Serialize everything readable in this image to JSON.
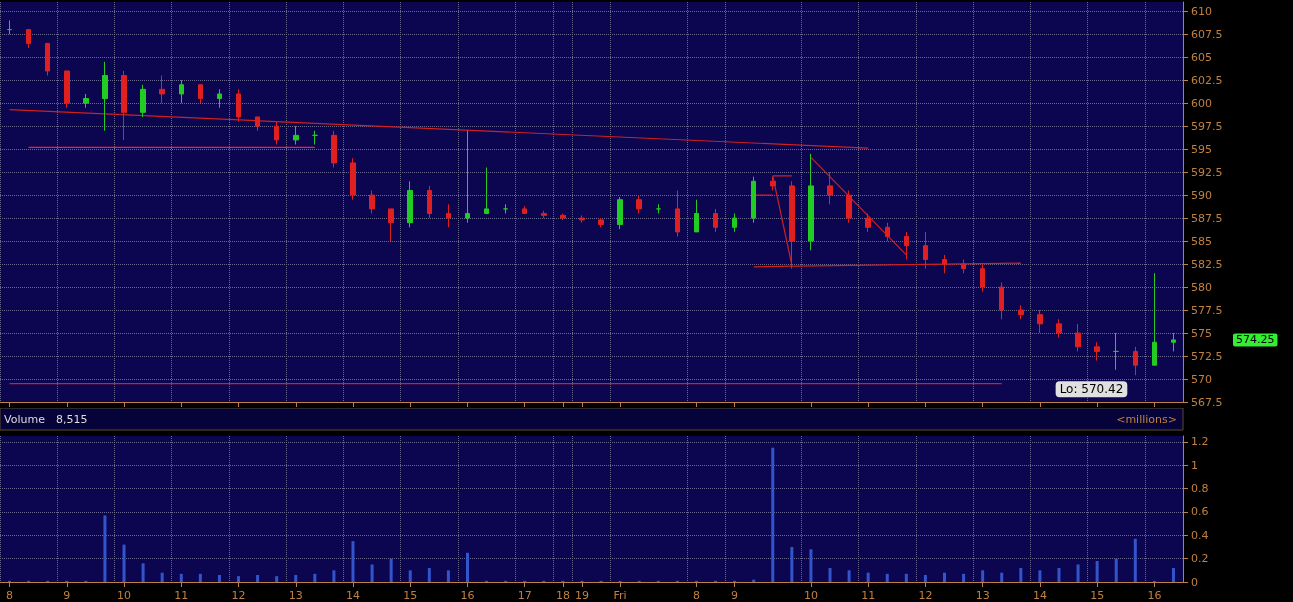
{
  "chart_data": [
    {
      "type": "candlestick",
      "categories": [
        null,
        null,
        null,
        null,
        null,
        null,
        null,
        null,
        null,
        null,
        null,
        null,
        null,
        null,
        null,
        null,
        null,
        null,
        null,
        null,
        null,
        null,
        null,
        null,
        null,
        null,
        null,
        null,
        null,
        null,
        null,
        null,
        null,
        null,
        null,
        null,
        null,
        null,
        null,
        null,
        null,
        null,
        null,
        null,
        null,
        null,
        null,
        null,
        null,
        null,
        null,
        null,
        null,
        null,
        null,
        null,
        null,
        null,
        null,
        null,
        null,
        null
      ],
      "ohlc": [
        [
          608,
          609,
          607.5,
          608
        ],
        [
          608,
          608,
          606,
          606.5
        ],
        [
          606.5,
          606.5,
          603,
          603.5
        ],
        [
          603.5,
          603.5,
          599.5,
          600
        ],
        [
          600,
          601,
          599.5,
          600.5
        ],
        [
          600.5,
          604.5,
          597,
          603
        ],
        [
          603,
          603.5,
          596,
          599
        ],
        [
          599,
          602,
          598.5,
          601.5
        ],
        [
          601.5,
          603,
          600,
          601
        ],
        [
          601,
          602.5,
          600,
          602
        ],
        [
          602,
          602,
          600,
          600.5
        ],
        [
          600.5,
          601.5,
          599.5,
          601
        ],
        [
          601,
          601.5,
          598,
          598.5
        ],
        [
          598.5,
          598.5,
          597,
          597.5
        ],
        [
          597.5,
          598,
          595.5,
          596
        ],
        [
          596,
          597.5,
          595.5,
          596.5
        ],
        [
          596.5,
          597,
          595.5,
          596.5
        ],
        [
          596.5,
          597,
          593,
          593.5
        ],
        [
          593.5,
          594,
          589.5,
          590
        ],
        [
          590,
          590.5,
          588,
          588.5
        ],
        [
          588.5,
          588.5,
          585,
          587
        ],
        [
          587,
          591.5,
          586.5,
          590.5
        ],
        [
          590.5,
          591,
          587.5,
          588
        ],
        [
          588,
          589,
          586.5,
          587.5
        ],
        [
          587.5,
          597,
          587,
          588
        ],
        [
          588,
          593,
          588,
          588.5
        ],
        [
          588.5,
          589,
          588,
          588.5
        ],
        [
          588.5,
          588.8,
          588,
          588
        ],
        [
          588,
          588.3,
          587.5,
          587.8
        ],
        [
          587.8,
          588,
          587.3,
          587.5
        ],
        [
          587.5,
          587.8,
          587,
          587.3
        ],
        [
          587.3,
          587.5,
          586.5,
          586.8
        ],
        [
          586.8,
          589.8,
          586.3,
          589.5
        ],
        [
          589.5,
          590,
          588,
          588.5
        ],
        [
          588.5,
          589,
          588,
          588.5
        ],
        [
          588.5,
          590.5,
          585.5,
          586
        ],
        [
          586,
          589.5,
          586,
          588
        ],
        [
          588,
          588.5,
          586,
          586.5
        ],
        [
          586.5,
          588,
          586,
          587.5
        ],
        [
          587.5,
          592,
          587,
          591.5
        ],
        [
          591.5,
          592,
          590.5,
          591
        ],
        [
          591,
          591.5,
          582,
          585
        ],
        [
          585,
          594.5,
          584,
          591
        ],
        [
          591,
          592.5,
          589,
          590
        ],
        [
          590,
          590.5,
          587,
          587.5
        ],
        [
          587.5,
          588,
          586,
          586.5
        ],
        [
          586.5,
          587,
          585,
          585.5
        ],
        [
          585.5,
          586,
          583,
          584.5
        ],
        [
          584.5,
          586,
          582,
          583
        ],
        [
          583,
          583.5,
          581.5,
          582.5
        ],
        [
          582.5,
          583,
          581.5,
          582
        ],
        [
          582,
          582.5,
          579.5,
          580
        ],
        [
          580,
          580.5,
          576.5,
          577.5
        ],
        [
          577.5,
          578,
          576.5,
          577
        ],
        [
          577,
          577.5,
          575,
          576
        ],
        [
          576,
          576.5,
          574.5,
          575
        ],
        [
          575,
          576,
          573,
          573.5
        ],
        [
          573.5,
          574,
          572,
          573
        ],
        [
          573,
          575,
          571,
          573
        ],
        [
          573,
          573.5,
          570.42,
          571.5
        ],
        [
          571.5,
          581.5,
          571.5,
          574
        ],
        [
          574,
          575,
          573,
          574.25
        ]
      ],
      "series": [
        {
          "type": "line",
          "color": "#d02020",
          "values": [
            599.3,
            null,
            null,
            null,
            null,
            null,
            null,
            null,
            null,
            null,
            null,
            null,
            null,
            null,
            null,
            null,
            null,
            null,
            null,
            null,
            null,
            null,
            null,
            null,
            null,
            null,
            null,
            null,
            null,
            null,
            null,
            null,
            null,
            null,
            null,
            null,
            null,
            null,
            null,
            null,
            null,
            null,
            null,
            null,
            null,
            595.1,
            null,
            null,
            null,
            null,
            null,
            null,
            null,
            null,
            null,
            null,
            null,
            null,
            null,
            null,
            null,
            null
          ]
        },
        {
          "type": "line",
          "color": "#ff2020",
          "values": [
            null,
            595.2,
            null,
            null,
            null,
            null,
            null,
            null,
            null,
            null,
            null,
            null,
            null,
            null,
            null,
            null,
            595.2,
            null,
            null,
            null,
            null,
            null,
            null,
            null,
            null,
            null,
            null,
            null,
            null,
            null,
            null,
            null,
            null,
            null,
            null,
            null,
            null,
            null,
            null,
            null,
            null,
            null,
            null,
            null,
            null,
            null,
            null,
            null,
            null,
            null,
            null,
            null,
            null,
            null,
            null,
            null,
            null,
            null,
            null,
            null,
            null,
            null
          ]
        },
        {
          "type": "line",
          "color": "#d02020",
          "values": [
            569.5,
            null,
            null,
            null,
            null,
            null,
            null,
            null,
            null,
            null,
            null,
            null,
            null,
            null,
            null,
            null,
            null,
            null,
            null,
            null,
            null,
            null,
            null,
            null,
            null,
            null,
            null,
            null,
            null,
            null,
            null,
            null,
            null,
            null,
            null,
            null,
            null,
            null,
            null,
            null,
            null,
            null,
            null,
            null,
            null,
            null,
            null,
            null,
            null,
            null,
            null,
            null,
            569.5,
            null,
            null,
            null,
            null,
            null,
            null,
            null,
            null,
            null
          ]
        },
        {
          "type": "line",
          "color": "#d02020",
          "values": [
            null,
            null,
            null,
            null,
            null,
            null,
            null,
            null,
            null,
            null,
            null,
            null,
            null,
            null,
            null,
            null,
            null,
            null,
            null,
            null,
            null,
            null,
            null,
            null,
            null,
            null,
            null,
            null,
            null,
            null,
            null,
            null,
            null,
            null,
            null,
            null,
            null,
            null,
            null,
            582.2,
            null,
            null,
            null,
            null,
            null,
            null,
            null,
            null,
            null,
            null,
            null,
            null,
            null,
            582.6,
            null,
            null,
            null,
            null,
            null,
            null,
            null,
            null
          ]
        },
        {
          "type": "line",
          "color": "#d02020",
          "values": [
            null,
            null,
            null,
            null,
            null,
            null,
            null,
            null,
            null,
            null,
            null,
            null,
            null,
            null,
            null,
            null,
            null,
            null,
            null,
            null,
            null,
            null,
            null,
            null,
            null,
            null,
            null,
            null,
            null,
            null,
            null,
            null,
            null,
            null,
            null,
            null,
            null,
            null,
            null,
            null,
            null,
            null,
            594.1,
            null,
            null,
            null,
            null,
            583.5,
            null,
            null,
            null,
            null,
            null,
            null,
            null,
            null,
            null,
            null,
            null,
            null,
            null,
            null
          ]
        },
        {
          "type": "line",
          "color": "#d02020",
          "values": [
            null,
            null,
            null,
            null,
            null,
            null,
            null,
            null,
            null,
            null,
            null,
            null,
            null,
            null,
            null,
            null,
            null,
            null,
            null,
            null,
            null,
            null,
            null,
            null,
            null,
            null,
            null,
            null,
            null,
            null,
            null,
            null,
            null,
            null,
            null,
            null,
            null,
            null,
            null,
            null,
            592.1,
            582.4,
            null,
            null,
            null,
            null,
            null,
            null,
            null,
            null,
            null,
            null,
            null,
            null,
            null,
            null,
            null,
            null,
            null,
            null,
            null,
            null
          ]
        },
        {
          "type": "line",
          "color": "#d02020",
          "values": [
            null,
            null,
            null,
            null,
            null,
            null,
            null,
            null,
            null,
            null,
            null,
            null,
            null,
            null,
            null,
            null,
            null,
            null,
            null,
            null,
            null,
            null,
            null,
            null,
            null,
            null,
            null,
            null,
            null,
            null,
            null,
            null,
            null,
            null,
            null,
            null,
            null,
            null,
            null,
            null,
            592.1,
            592.1,
            null,
            null,
            null,
            null,
            null,
            null,
            null,
            null,
            null,
            null,
            null,
            null,
            null,
            null,
            null,
            null,
            null,
            null,
            null,
            null
          ]
        },
        {
          "type": "line",
          "color": "#d02020",
          "values": [
            null,
            null,
            null,
            null,
            null,
            null,
            null,
            null,
            null,
            null,
            null,
            null,
            null,
            null,
            null,
            null,
            null,
            null,
            null,
            null,
            null,
            null,
            null,
            null,
            null,
            null,
            null,
            null,
            null,
            null,
            null,
            null,
            null,
            null,
            null,
            null,
            null,
            null,
            null,
            590,
            590,
            null,
            null,
            null,
            null,
            null,
            null,
            null,
            null,
            null,
            null,
            null,
            null,
            null,
            null,
            null,
            null,
            null,
            null,
            null,
            null,
            null
          ]
        }
      ],
      "ylim": [
        567.5,
        611
      ],
      "yticks": [
        567.5,
        570,
        572.5,
        575,
        577.5,
        580,
        582.5,
        585,
        587.5,
        590,
        592.5,
        595,
        597.5,
        600,
        602.5,
        605,
        607.5,
        610
      ],
      "tick_labels": "y",
      "grid": true,
      "annotations": [
        "Lo: 570.42",
        "574.25"
      ]
    },
    {
      "type": "bar",
      "color": "#3355cc",
      "categories": [
        "8",
        null,
        null,
        "9",
        null,
        null,
        "10",
        null,
        null,
        "11",
        null,
        null,
        "12",
        null,
        null,
        "13",
        null,
        null,
        "14",
        null,
        null,
        "15",
        null,
        null,
        "16",
        null,
        null,
        "17",
        null,
        "18",
        "19",
        null,
        "Fri",
        null,
        null,
        null,
        "8",
        null,
        "9",
        null,
        null,
        null,
        "10",
        null,
        null,
        "11",
        null,
        null,
        "12",
        null,
        null,
        "13",
        null,
        null,
        "14",
        null,
        null,
        "15",
        null,
        null,
        "16",
        null
      ],
      "values": [
        0.01,
        0.01,
        0.01,
        0.01,
        0.01,
        0.57,
        0.32,
        0.16,
        0.08,
        0.07,
        0.07,
        0.06,
        0.05,
        0.06,
        0.05,
        0.06,
        0.07,
        0.1,
        0.35,
        0.15,
        0.2,
        0.1,
        0.12,
        0.1,
        0.25,
        0.01,
        0.01,
        0.01,
        0.01,
        0.01,
        0.01,
        0.01,
        0.01,
        0.01,
        0.01,
        0.01,
        0.01,
        0.01,
        0.01,
        0.02,
        1.15,
        0.3,
        0.28,
        0.12,
        0.1,
        0.08,
        0.07,
        0.07,
        0.06,
        0.08,
        0.07,
        0.1,
        0.08,
        0.12,
        0.1,
        0.12,
        0.15,
        0.18,
        0.2,
        0.37,
        0.01,
        0.12
      ],
      "ylim": [
        0,
        1.25
      ],
      "yticks": [
        0,
        0.2,
        0.4,
        0.6,
        0.8,
        1,
        1.2
      ],
      "grid": true,
      "annotations": [
        "Volume",
        "8,515",
        "<millions>"
      ]
    }
  ]
}
